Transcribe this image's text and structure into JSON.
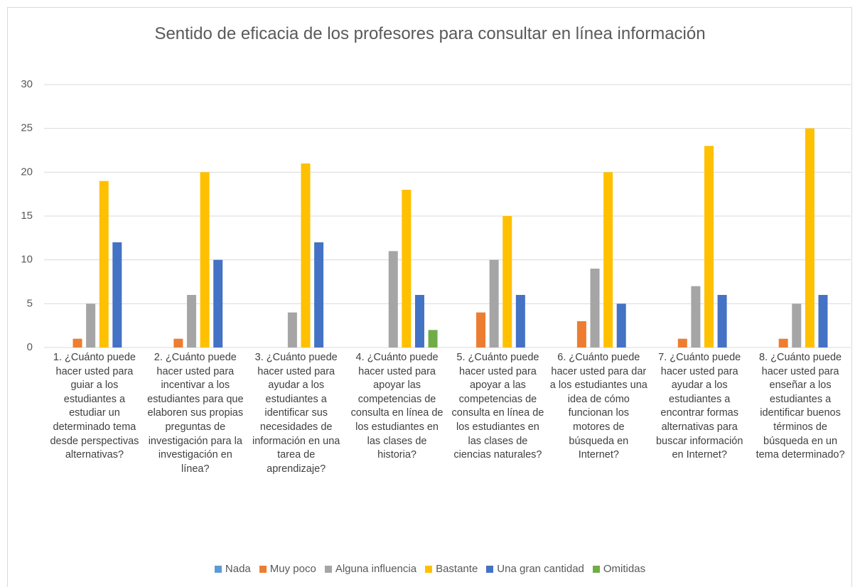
{
  "chart_data": {
    "type": "bar",
    "title": "Sentido de eficacia de los profesores para consultar en línea información",
    "categories": [
      "1. ¿Cuánto puede hacer usted para guiar a los estudiantes a estudiar un determinado tema desde perspectivas alternativas?",
      "2. ¿Cuánto puede hacer usted para incentivar a los estudiantes para que elaboren sus propias preguntas de investigación para la investigación en línea?",
      "3. ¿Cuánto puede hacer usted para ayudar a los estudiantes a identificar sus necesidades de información en una tarea de aprendizaje?",
      "4. ¿Cuánto puede hacer usted para apoyar las competencias de consulta en línea de los estudiantes en las clases de historia?",
      "5. ¿Cuánto puede hacer usted para apoyar a las competencias de consulta en línea de los estudiantes en las clases de ciencias naturales?",
      "6. ¿Cuánto puede hacer usted para dar a los estudiantes una idea de cómo funcionan los motores de búsqueda en Internet?",
      "7. ¿Cuánto puede hacer usted para ayudar a los estudiantes a encontrar formas alternativas para buscar información en Internet?",
      "8. ¿Cuánto puede hacer usted para enseñar a los estudiantes a identificar buenos términos de búsqueda en un tema determinado?"
    ],
    "series": [
      {
        "name": "Nada",
        "color": "#5b9bd5",
        "values": [
          0,
          0,
          0,
          0,
          0,
          0,
          0,
          0
        ]
      },
      {
        "name": "Muy poco",
        "color": "#ed7d31",
        "values": [
          1,
          1,
          0,
          0,
          4,
          3,
          1,
          1
        ]
      },
      {
        "name": "Alguna influencia",
        "color": "#a5a5a5",
        "values": [
          5,
          6,
          4,
          11,
          10,
          9,
          7,
          5
        ]
      },
      {
        "name": "Bastante",
        "color": "#ffc000",
        "values": [
          19,
          20,
          21,
          18,
          15,
          20,
          23,
          25
        ]
      },
      {
        "name": "Una gran cantidad",
        "color": "#4472c4",
        "values": [
          12,
          10,
          12,
          6,
          6,
          5,
          6,
          6
        ]
      },
      {
        "name": "Omitidas",
        "color": "#70ad47",
        "values": [
          0,
          0,
          0,
          2,
          0,
          0,
          0,
          0
        ]
      }
    ],
    "ylim": [
      0,
      30
    ],
    "yticks": [
      0,
      5,
      10,
      15,
      20,
      25,
      30
    ],
    "grid": true,
    "legend": "bottom"
  }
}
